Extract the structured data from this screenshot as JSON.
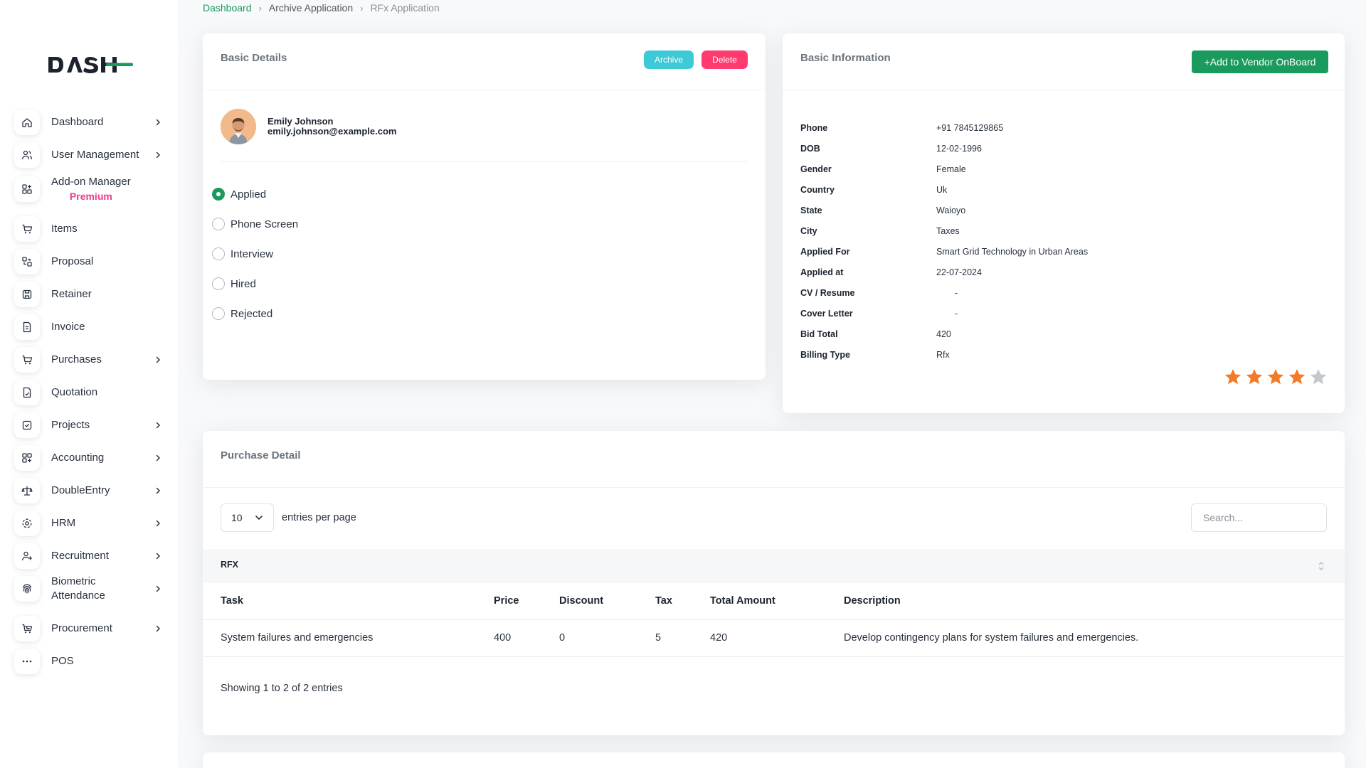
{
  "app": {
    "logo_text": "DASH"
  },
  "breadcrumb": [
    {
      "label": "Dashboard"
    },
    {
      "label": "Archive Application"
    },
    {
      "label": "RFx Application"
    }
  ],
  "sidebar": {
    "items": [
      {
        "label": "Dashboard",
        "icon": "home-icon",
        "has_submenu": true
      },
      {
        "label": "User Management",
        "icon": "users-icon",
        "has_submenu": true
      },
      {
        "label": "Add-on Manager",
        "sub": "Premium",
        "icon": "addon-icon",
        "has_submenu": false
      },
      {
        "label": "Items",
        "icon": "cart-icon",
        "has_submenu": false
      },
      {
        "label": "Proposal",
        "icon": "proposal-icon",
        "has_submenu": false
      },
      {
        "label": "Retainer",
        "icon": "retainer-icon",
        "has_submenu": false
      },
      {
        "label": "Invoice",
        "icon": "invoice-icon",
        "has_submenu": false
      },
      {
        "label": "Purchases",
        "icon": "purchases-icon",
        "has_submenu": true
      },
      {
        "label": "Quotation",
        "icon": "quotation-icon",
        "has_submenu": false
      },
      {
        "label": "Projects",
        "icon": "projects-icon",
        "has_submenu": true
      },
      {
        "label": "Accounting",
        "icon": "accounting-icon",
        "has_submenu": true
      },
      {
        "label": "DoubleEntry",
        "icon": "scale-icon",
        "has_submenu": true
      },
      {
        "label": "HRM",
        "icon": "hrm-icon",
        "has_submenu": true
      },
      {
        "label": "Recruitment",
        "icon": "user-plus-icon",
        "has_submenu": true
      },
      {
        "label": "Biometric Attendance",
        "icon": "fingerprint-icon",
        "has_submenu": true
      },
      {
        "label": "Procurement",
        "icon": "procurement-icon",
        "has_submenu": true
      },
      {
        "label": "POS",
        "icon": "pos-icon",
        "has_submenu": false
      }
    ]
  },
  "basic_details": {
    "title": "Basic Details",
    "archive_label": "Archive",
    "delete_label": "Delete",
    "name": "Emily Johnson",
    "email": "emily.johnson@example.com",
    "statuses": [
      {
        "label": "Applied",
        "selected": true
      },
      {
        "label": "Phone Screen",
        "selected": false
      },
      {
        "label": "Interview",
        "selected": false
      },
      {
        "label": "Hired",
        "selected": false
      },
      {
        "label": "Rejected",
        "selected": false
      }
    ]
  },
  "basic_information": {
    "title": "Basic Information",
    "vendor_button": "Add to Vendor OnBoard",
    "fields": [
      {
        "key": "Phone",
        "value": "+91 7845129865"
      },
      {
        "key": "DOB",
        "value": "12-02-1996"
      },
      {
        "key": "Gender",
        "value": "Female"
      },
      {
        "key": "Country",
        "value": "Uk"
      },
      {
        "key": "State",
        "value": "Waioyo"
      },
      {
        "key": "City",
        "value": "Taxes"
      },
      {
        "key": "Applied For",
        "value": "Smart Grid Technology in Urban Areas"
      },
      {
        "key": "Applied at",
        "value": "22-07-2024"
      },
      {
        "key": "CV / Resume",
        "value": "-"
      },
      {
        "key": "Cover Letter",
        "value": "-"
      },
      {
        "key": "Bid Total",
        "value": "420"
      },
      {
        "key": "Billing Type",
        "value": "Rfx"
      }
    ],
    "rating": 4,
    "rating_max": 5
  },
  "purchase_detail": {
    "title": "Purchase Detail",
    "per_page_value": "10",
    "per_page_label": "entries per page",
    "search_placeholder": "Search...",
    "group_header": "RFX",
    "columns": [
      "Task",
      "Price",
      "Discount",
      "Tax",
      "Total Amount",
      "Description"
    ],
    "rows": [
      [
        "System failures and emergencies",
        "400",
        "0",
        "5",
        "420",
        "Develop contingency plans for system failures and emergencies."
      ]
    ],
    "showing": "Showing 1 to 2 of 2 entries"
  },
  "colors": {
    "brand_green": "#1a9b5e",
    "archive_cyan": "#3ec9d6",
    "delete_pink": "#ff3a6e",
    "premium_pink": "#e83e8c",
    "star_orange": "#f37a28"
  }
}
